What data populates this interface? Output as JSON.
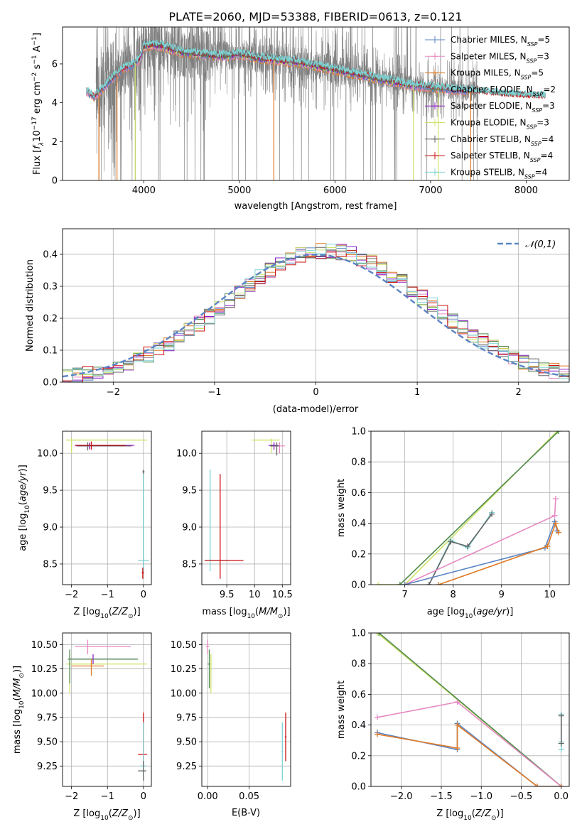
{
  "colors": {
    "chabrier_miles": "#5b84c4",
    "salpeter_miles": "#e68ac3",
    "kroupa_miles": "#e07b27",
    "chabrier_elodie": "#4f8a4f",
    "salpeter_elodie": "#8b22c9",
    "kroupa_elodie": "#cfe36a",
    "chabrier_stelib": "#666666",
    "salpeter_stelib": "#cc1111",
    "kroupa_stelib": "#7fd3d3",
    "data": "#808080",
    "gaussian": "#5b84c4",
    "grid": "#b0b0b0"
  },
  "chart_data": [
    {
      "id": "spectrum",
      "type": "line",
      "title": "PLATE=2060, MJD=53388, FIBERID=0613, z=0.121",
      "xlabel": "wavelength [Angstrom, rest frame]",
      "ylabel": "Flux [f_λ10^{-17} erg cm^{-2} s^{-1} A^{-1}]",
      "xlim": [
        3150,
        8450
      ],
      "ylim": [
        0,
        7.9
      ],
      "xticks": [
        4000,
        5000,
        6000,
        7000,
        8000
      ],
      "yticks": [
        0,
        2,
        4,
        6
      ],
      "grid": false,
      "legend_position": "upper-right",
      "legend": [
        {
          "key": "chabrier_miles",
          "label": "Chabrier MILES, N",
          "sub": "SSP",
          "tail": "=5"
        },
        {
          "key": "salpeter_miles",
          "label": "Salpeter MILES, N",
          "sub": "SSP",
          "tail": "=3"
        },
        {
          "key": "kroupa_miles",
          "label": "Kroupa MILES, N",
          "sub": "SSP",
          "tail": "=5"
        },
        {
          "key": "chabrier_elodie",
          "label": "Chabrier ELODIE, N",
          "sub": "SSP",
          "tail": "=2"
        },
        {
          "key": "salpeter_elodie",
          "label": "Salpeter ELODIE, N",
          "sub": "SSP",
          "tail": "=3"
        },
        {
          "key": "kroupa_elodie",
          "label": "Kroupa ELODIE, N",
          "sub": "SSP",
          "tail": "=3"
        },
        {
          "key": "chabrier_stelib",
          "label": "Chabrier STELIB, N",
          "sub": "SSP",
          "tail": "=4"
        },
        {
          "key": "salpeter_stelib",
          "label": "Salpeter STELIB, N",
          "sub": "SSP",
          "tail": "=4"
        },
        {
          "key": "kroupa_stelib",
          "label": "Kroupa STELIB, N",
          "sub": "SSP",
          "tail": "=4"
        }
      ],
      "continuum": {
        "x": [
          3400,
          3480,
          3520,
          3600,
          3700,
          3800,
          3900,
          3950,
          4000,
          4100,
          4200,
          4400,
          4600,
          4800,
          5000,
          5200,
          5400,
          5600,
          5800,
          6000,
          6200,
          6400,
          6600,
          6800,
          7000,
          7200,
          7400,
          7600,
          7800,
          8000,
          8200
        ],
        "y": [
          4.6,
          4.3,
          4.5,
          4.9,
          5.4,
          5.8,
          6.0,
          6.2,
          6.9,
          7.0,
          6.9,
          6.6,
          6.5,
          6.4,
          6.5,
          6.3,
          6.2,
          6.1,
          5.9,
          5.7,
          5.5,
          5.3,
          5.1,
          4.9,
          4.8,
          4.7,
          4.6,
          4.5,
          4.4,
          4.35,
          4.3
        ]
      },
      "model_drops": [
        {
          "key": "kroupa_miles",
          "x": 3530,
          "ymin": 0
        },
        {
          "key": "kroupa_miles",
          "x": 3720,
          "ymin": 0
        },
        {
          "key": "kroupa_miles",
          "x": 5360,
          "ymin": 0
        },
        {
          "key": "kroupa_miles",
          "x": 7420,
          "ymin": 0
        },
        {
          "key": "kroupa_elodie",
          "x": 3910,
          "ymin": 0
        },
        {
          "key": "kroupa_elodie",
          "x": 6820,
          "ymin": 0
        },
        {
          "key": "kroupa_elodie",
          "x": 7080,
          "ymin": 0
        }
      ]
    },
    {
      "id": "residuals",
      "type": "line",
      "xlabel": "(data-model)/error",
      "ylabel": "Normed distribution",
      "xlim": [
        -2.5,
        2.5
      ],
      "ylim": [
        0,
        0.48
      ],
      "xticks": [
        -2,
        -1,
        0,
        1,
        2
      ],
      "yticks": [
        0.0,
        0.1,
        0.2,
        0.3,
        0.4
      ],
      "grid": true,
      "legend_position": "upper-right",
      "gaussian_label": "𝒩(0,1)",
      "bin_width": 0.1
    },
    {
      "id": "age_vs_Z",
      "type": "scatter",
      "xlabel": "Z [log10(Z/Z⊙)]",
      "ylabel": "age  [log10(age/yr)]",
      "xlim": [
        -2.25,
        0.22
      ],
      "ylim": [
        8.22,
        10.3
      ],
      "xticks": [
        -2,
        -1,
        0
      ],
      "yticks": [
        8.5,
        9.0,
        9.5,
        10.0
      ],
      "grid": true,
      "points": [
        {
          "key": "kroupa_elodie",
          "x": -2.0,
          "y": 10.18,
          "x1": -2.15,
          "x2": 0.1,
          "y1": 10.0,
          "y2": 10.2
        },
        {
          "key": "salpeter_miles",
          "x": -1.5,
          "y": 10.1,
          "x1": -1.9,
          "x2": -0.3,
          "y1": 10.05,
          "y2": 10.15
        },
        {
          "key": "salpeter_elodie",
          "x": -1.5,
          "y": 10.11,
          "x1": -1.9,
          "x2": -0.25,
          "y1": 10.06,
          "y2": 10.14
        },
        {
          "key": "chabrier_stelib",
          "x": -1.55,
          "y": 10.1,
          "x1": -1.85,
          "x2": -0.35,
          "y1": 10.04,
          "y2": 10.15
        },
        {
          "key": "salpeter_stelib",
          "x": -1.45,
          "y": 10.11,
          "x1": -1.9,
          "x2": -0.5,
          "y1": 10.05,
          "y2": 10.16
        },
        {
          "key": "chabrier_stelib",
          "x": 0.0,
          "y": 9.75,
          "x1": -0.03,
          "x2": 0.03,
          "y1": 8.4,
          "y2": 9.78
        },
        {
          "key": "kroupa_stelib",
          "x": 0.0,
          "y": 8.55,
          "x1": -0.15,
          "x2": 0.15,
          "y1": 8.4,
          "y2": 9.72
        },
        {
          "key": "salpeter_stelib",
          "x": -0.02,
          "y": 8.38,
          "x1": -0.05,
          "x2": 0.02,
          "y1": 8.3,
          "y2": 8.45
        }
      ]
    },
    {
      "id": "age_vs_mass",
      "type": "scatter",
      "xlabel": "mass [log10(M/M⊙)]",
      "ylabel": "",
      "xlim": [
        9.05,
        10.65
      ],
      "ylim": [
        8.22,
        10.3
      ],
      "xticks": [
        9.5,
        10.0,
        10.5
      ],
      "yticks": [
        8.5,
        9.0,
        9.5,
        10.0
      ],
      "grid": true,
      "points": [
        {
          "key": "kroupa_elodie",
          "x": 10.3,
          "y": 10.18,
          "x1": 9.95,
          "x2": 10.45,
          "y1": 10.0,
          "y2": 10.2
        },
        {
          "key": "salpeter_miles",
          "x": 10.45,
          "y": 10.1,
          "x1": 10.3,
          "x2": 10.55,
          "y1": 10.0,
          "y2": 10.15
        },
        {
          "key": "salpeter_elodie",
          "x": 10.35,
          "y": 10.11,
          "x1": 10.25,
          "x2": 10.42,
          "y1": 10.05,
          "y2": 10.15
        },
        {
          "key": "chabrier_stelib",
          "x": 10.4,
          "y": 10.1,
          "x1": 10.28,
          "x2": 10.45,
          "y1": 9.97,
          "y2": 10.15
        },
        {
          "key": "kroupa_stelib",
          "x": 9.2,
          "y": 8.55,
          "x1": 9.1,
          "x2": 9.55,
          "y1": 8.4,
          "y2": 9.78
        },
        {
          "key": "salpeter_stelib",
          "x": 9.38,
          "y": 8.55,
          "x1": 9.1,
          "x2": 9.8,
          "y1": 8.3,
          "y2": 9.72
        }
      ]
    },
    {
      "id": "weight_vs_age",
      "type": "line",
      "xlabel": "age  [log10(age/yr)]",
      "ylabel": "mass weight",
      "xlim": [
        6.3,
        10.4
      ],
      "ylim": [
        0.0,
        1.0
      ],
      "xticks": [
        7,
        8,
        9,
        10
      ],
      "yticks": [
        0.0,
        0.2,
        0.4,
        0.6,
        0.8,
        1.0
      ],
      "grid": true,
      "series": [
        {
          "key": "kroupa_elodie",
          "x": [
            6.45,
            7.0,
            10.15
          ],
          "y": [
            0.0,
            0.0,
            1.0
          ]
        },
        {
          "key": "chabrier_elodie",
          "x": [
            6.9,
            10.18
          ],
          "y": [
            0.0,
            1.0
          ]
        },
        {
          "key": "kroupa_stelib",
          "x": [
            7.5,
            7.95,
            8.3,
            8.8
          ],
          "y": [
            0.0,
            0.29,
            0.24,
            0.47
          ]
        },
        {
          "key": "chabrier_stelib",
          "x": [
            7.5,
            7.95,
            8.3,
            8.8
          ],
          "y": [
            0.0,
            0.28,
            0.25,
            0.46
          ]
        },
        {
          "key": "salpeter_miles",
          "x": [
            7.0,
            10.1,
            10.12
          ],
          "y": [
            0.0,
            0.45,
            0.56
          ]
        },
        {
          "key": "chabrier_miles",
          "x": [
            7.0,
            9.9,
            10.1,
            10.15
          ],
          "y": [
            0.0,
            0.24,
            0.41,
            0.35
          ]
        },
        {
          "key": "kroupa_miles",
          "x": [
            7.7,
            9.95,
            10.12,
            10.18
          ],
          "y": [
            0.0,
            0.25,
            0.4,
            0.34
          ]
        }
      ]
    },
    {
      "id": "mass_vs_Z",
      "type": "scatter",
      "xlabel": "Z [log10(Z/Z⊙)]",
      "ylabel": "mass [log10(M/M⊙)]",
      "xlim": [
        -2.25,
        0.22
      ],
      "ylim": [
        9.04,
        10.62
      ],
      "xticks": [
        -2,
        -1,
        0
      ],
      "yticks": [
        9.25,
        9.5,
        9.75,
        10.0,
        10.25,
        10.5
      ],
      "grid": true,
      "points": [
        {
          "key": "kroupa_elodie",
          "x": -2.05,
          "y": 10.3,
          "x1": -2.15,
          "x2": 0.1,
          "y1": 10.0,
          "y2": 10.4
        },
        {
          "key": "salpeter_miles",
          "x": -1.55,
          "y": 10.48,
          "x1": -1.9,
          "x2": -0.35,
          "y1": 10.4,
          "y2": 10.55
        },
        {
          "key": "salpeter_elodie",
          "x": -1.4,
          "y": 10.35,
          "x1": -2.1,
          "x2": -0.2,
          "y1": 10.3,
          "y2": 10.4
        },
        {
          "key": "chabrier_elodie",
          "x": -2.05,
          "y": 10.35,
          "x1": -2.1,
          "x2": -0.15,
          "y1": 10.1,
          "y2": 10.45
        },
        {
          "key": "kroupa_miles",
          "x": -1.45,
          "y": 10.28,
          "x1": -2.0,
          "x2": -1.1,
          "y1": 10.18,
          "y2": 10.35
        },
        {
          "key": "salpeter_stelib",
          "x": 0.0,
          "y": 9.37,
          "x1": -0.15,
          "x2": 0.1,
          "y1": 9.25,
          "y2": 9.8
        },
        {
          "key": "kroupa_stelib",
          "x": 0.0,
          "y": 9.25,
          "x1": -0.1,
          "x2": 0.08,
          "y1": 9.1,
          "y2": 9.7
        },
        {
          "key": "chabrier_stelib",
          "x": 0.0,
          "y": 9.2,
          "x1": -0.15,
          "x2": 0.08,
          "y1": 9.1,
          "y2": 9.3
        }
      ]
    },
    {
      "id": "mass_vs_ebv",
      "type": "scatter",
      "xlabel": "E(B-V)",
      "ylabel": "",
      "xlim": [
        -0.007,
        0.1
      ],
      "ylim": [
        9.04,
        10.62
      ],
      "xticks": [
        0.0,
        0.05
      ],
      "xticklabels": [
        "0.00",
        "0.05"
      ],
      "yticks": [
        9.25,
        9.5,
        9.75,
        10.0,
        10.25,
        10.5
      ],
      "grid": true,
      "points": [
        {
          "key": "salpeter_miles",
          "x": 0.0,
          "y": 10.48,
          "x1": -0.002,
          "x2": 0.002,
          "y1": 10.4,
          "y2": 10.55
        },
        {
          "key": "chabrier_elodie",
          "x": 0.002,
          "y": 10.3,
          "x1": 0.0,
          "x2": 0.003,
          "y1": 10.05,
          "y2": 10.45
        },
        {
          "key": "kroupa_elodie",
          "x": 0.004,
          "y": 10.3,
          "x1": 0.003,
          "x2": 0.005,
          "y1": 10.0,
          "y2": 10.4
        },
        {
          "key": "kroupa_stelib",
          "x": 0.09,
          "y": 9.4,
          "x1": 0.089,
          "x2": 0.091,
          "y1": 9.1,
          "y2": 9.7
        },
        {
          "key": "salpeter_stelib",
          "x": 0.094,
          "y": 9.55,
          "x1": 0.093,
          "x2": 0.095,
          "y1": 9.3,
          "y2": 9.8
        }
      ]
    },
    {
      "id": "weight_vs_Z",
      "type": "line",
      "xlabel": "Z [log10(Z/Z⊙)]",
      "ylabel": "mass weight",
      "xlim": [
        -2.38,
        0.1
      ],
      "ylim": [
        0.0,
        1.0
      ],
      "xticks": [
        -2.0,
        -1.5,
        -1.0,
        -0.5,
        0.0
      ],
      "xticklabels": [
        "−2.0",
        "−1.5",
        "−1.0",
        "−0.5",
        "0.0"
      ],
      "yticks": [
        0.0,
        0.2,
        0.4,
        0.6,
        0.8,
        1.0
      ],
      "grid": true,
      "series": [
        {
          "key": "kroupa_elodie",
          "x": [
            -2.3,
            0.0
          ],
          "y": [
            1.0,
            0.0
          ]
        },
        {
          "key": "chabrier_elodie",
          "x": [
            -2.28,
            0.0
          ],
          "y": [
            1.0,
            0.0
          ]
        },
        {
          "key": "salpeter_miles",
          "x": [
            -2.3,
            -1.3,
            0.0
          ],
          "y": [
            0.45,
            0.55,
            0.0
          ]
        },
        {
          "key": "chabrier_miles",
          "x": [
            -2.3,
            -1.3,
            -1.3,
            -0.3,
            0.0
          ],
          "y": [
            0.35,
            0.24,
            0.41,
            0.0,
            0.0
          ]
        },
        {
          "key": "kroupa_miles",
          "x": [
            -2.3,
            -1.3,
            -1.3,
            -0.3,
            0.0
          ],
          "y": [
            0.34,
            0.25,
            0.4,
            0.0,
            0.0
          ]
        },
        {
          "key": "kroupa_stelib",
          "x": [
            0.0,
            0.0,
            0.0
          ],
          "y": [
            0.47,
            0.29,
            0.24
          ]
        },
        {
          "key": "chabrier_stelib",
          "x": [
            0.0,
            0.0
          ],
          "y": [
            0.46,
            0.28
          ]
        }
      ]
    }
  ]
}
